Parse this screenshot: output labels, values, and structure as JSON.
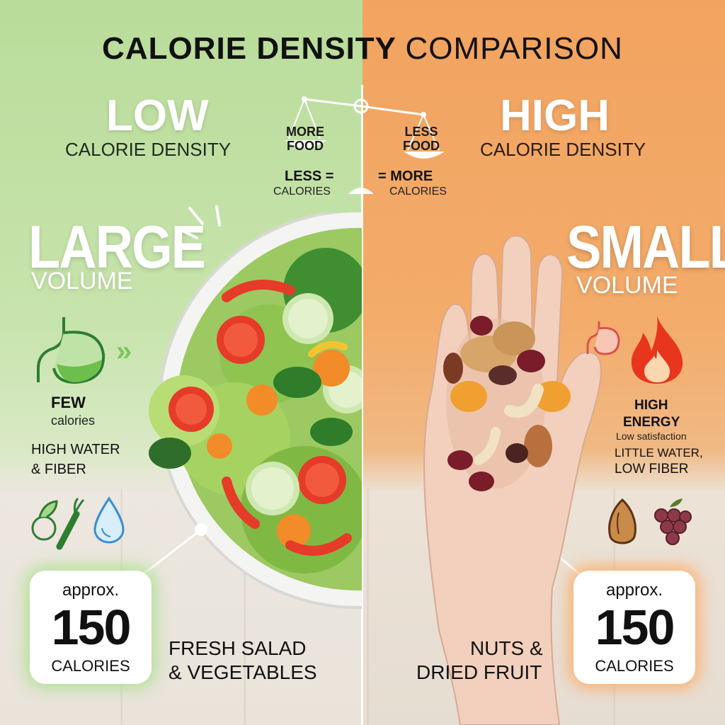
{
  "title": {
    "bold": "CALORIE DENSITY",
    "light": "COMPARISON"
  },
  "left": {
    "density_word": "LOW",
    "density_sub": "CALORIE DENSITY",
    "scale_top": "MORE FOOD",
    "scale_bottom_1": "LESS =",
    "scale_bottom_2": "CALORIES",
    "volume_word": "LARGE",
    "volume_sub": "VOLUME",
    "few": "FEW",
    "few_sub": "calories",
    "water_1": "HIGH WATER",
    "water_2": "& FIBER",
    "cal_approx": "approx.",
    "cal_num": "150",
    "cal_unit": "CALORIES",
    "food_1": "FRESH SALAD",
    "food_2": "& VEGETABLES",
    "accent": "#b9dc9a"
  },
  "right": {
    "density_word": "HIGH",
    "density_sub": "CALORIE DENSITY",
    "scale_top": "LESS FOOD",
    "scale_bottom_1": "= MORE",
    "scale_bottom_2": "CALORIES",
    "volume_word": "SMALL",
    "volume_sub": "VOLUME",
    "energy_1": "HIGH",
    "energy_2": "ENERGY",
    "energy_3": "Low satisfaction",
    "water_1": "LITTLE WATER,",
    "water_2": "LOW FIBER",
    "cal_approx": "approx.",
    "cal_num": "150",
    "cal_unit": "CALORIES",
    "food_1": "NUTS &",
    "food_2": "DRIED FRUIT",
    "accent": "#f2a35f"
  },
  "icons": {
    "left": [
      "stomach-icon",
      "arrows-icon",
      "vegetables-icon",
      "water-drop-icon"
    ],
    "right": [
      "stomach-icon",
      "flame-icon",
      "almond-icon",
      "grapes-icon"
    ]
  }
}
